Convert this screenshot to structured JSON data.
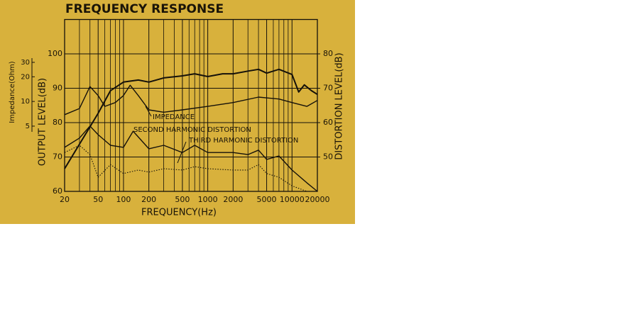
{
  "chart_data": {
    "type": "line",
    "title": "FREQUENCY RESPONSE",
    "x_label": "FREQUENCY(Hz)",
    "y_label": "OUTPUT LEVEL(dB)",
    "y2_label": "DISTORTION LEVEL(dB)",
    "impedance_label": "Impedance(Ohm)",
    "background": "#d8b13c",
    "x_log": true,
    "grid": true,
    "xlim": [
      20,
      20000
    ],
    "xticks": [
      20,
      50,
      100,
      200,
      500,
      1000,
      2000,
      5000,
      10000,
      20000
    ],
    "x_minor_ticks": [
      30,
      40,
      60,
      70,
      80,
      90,
      300,
      400,
      600,
      700,
      800,
      900,
      3000,
      4000,
      6000,
      7000,
      8000,
      9000
    ],
    "ylim": [
      60,
      110
    ],
    "yticks": [
      60,
      70,
      80,
      90,
      100
    ],
    "y2lim": [
      40,
      90
    ],
    "y2ticks": [
      50,
      60,
      70,
      80
    ],
    "impedance_log": true,
    "impedance_lim": [
      0.8,
      100
    ],
    "impedance_ticks": [
      5,
      10,
      20,
      30
    ],
    "series": [
      {
        "color": "#15110a",
        "width": 2,
        "style": "solid",
        "x": [
          20,
          50,
          70,
          100,
          150,
          200,
          300,
          500,
          700,
          1000,
          1500,
          2000,
          3000,
          4000,
          5000,
          7000,
          10000,
          12000,
          14000,
          17000,
          20000
        ],
        "values": [
          66.6,
          82.7,
          89.3,
          91.8,
          92.4,
          91.8,
          93,
          93.6,
          94.2,
          93.4,
          94.2,
          94.2,
          95,
          95.5,
          94.4,
          95.5,
          94,
          88.9,
          91,
          89.3,
          88.2
        ]
      },
      {
        "name": "IMPEDANCE",
        "axis": "impedance",
        "color": "#15110a",
        "width": 1.4,
        "style": "solid",
        "x": [
          20,
          30,
          40,
          50,
          60,
          80,
          100,
          120,
          150,
          200,
          300,
          500,
          1000,
          2000,
          4000,
          7000,
          10000,
          15000,
          20000
        ],
        "values": [
          6.9,
          8.2,
          15.2,
          11.8,
          8.7,
          9.7,
          11.8,
          15.8,
          11.8,
          7.9,
          7.4,
          7.9,
          8.7,
          9.7,
          11.3,
          10.7,
          9.7,
          8.7,
          10.3
        ]
      },
      {
        "name": "SECOND HARMONIC DISTORTION",
        "axis": "y2",
        "color": "#15110a",
        "width": 1.4,
        "style": "solid",
        "x": [
          20,
          30,
          40,
          50,
          70,
          100,
          130,
          200,
          300,
          500,
          700,
          1000,
          2000,
          3000,
          4000,
          5000,
          7000,
          10000,
          15000,
          20000
        ],
        "values": [
          52.8,
          55.5,
          59,
          56.5,
          53.4,
          52.8,
          57.5,
          52.4,
          53.4,
          51.3,
          53.4,
          51.3,
          51.3,
          50.7,
          52,
          49.3,
          50.3,
          46.2,
          42.5,
          40
        ]
      },
      {
        "name": "THIRD HARMONIC DISTORTION",
        "axis": "y2",
        "color": "#15110a",
        "width": 1.1,
        "style": "dotted",
        "x": [
          20,
          30,
          40,
          50,
          70,
          100,
          150,
          200,
          300,
          500,
          700,
          1000,
          2000,
          3000,
          4000,
          5000,
          7000,
          10000,
          15000
        ],
        "values": [
          51.3,
          53.4,
          50.7,
          44.1,
          47.8,
          45.2,
          46.2,
          45.6,
          46.6,
          46.2,
          47.2,
          46.6,
          46.2,
          46.2,
          47.8,
          45.2,
          44.1,
          41.6,
          40
        ]
      }
    ]
  }
}
